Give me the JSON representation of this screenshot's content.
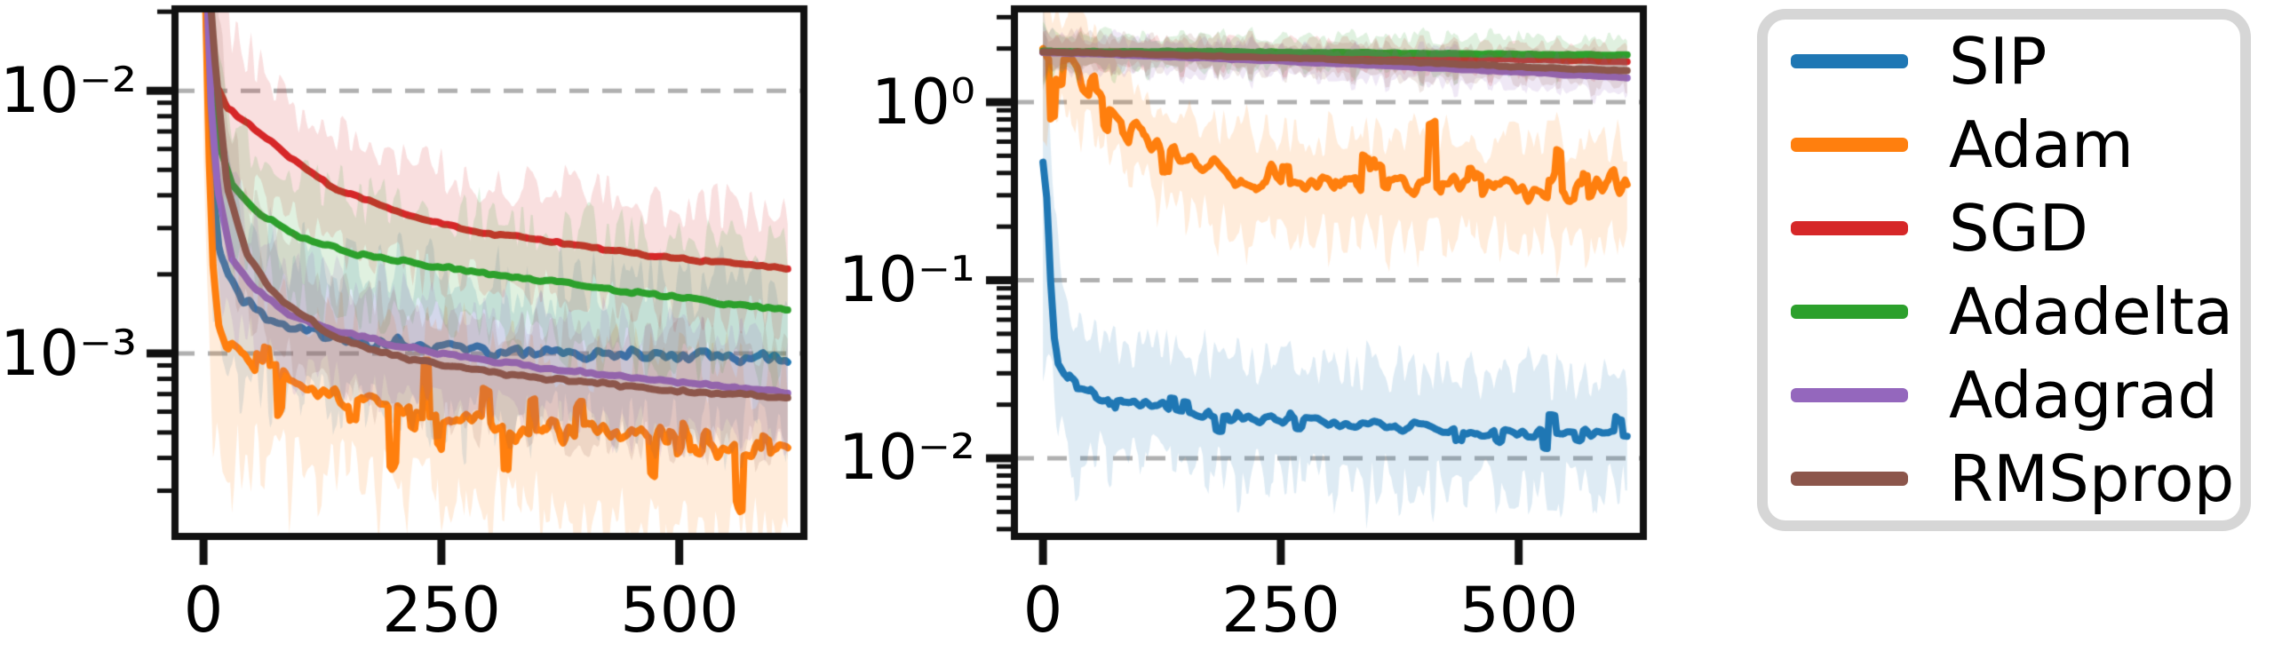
{
  "figure": {
    "background": "#ffffff",
    "spine_color": "#111111",
    "tick_color": "#111111",
    "grid_color": "#b0b0b0",
    "text_color": "#000000"
  },
  "legend": {
    "background": "#ffffff",
    "border_color": "#d6d6d6",
    "entries": [
      {
        "label": "SIP",
        "color": "#1f77b4"
      },
      {
        "label": "Adam",
        "color": "#ff7f0e"
      },
      {
        "label": "SGD",
        "color": "#d62728"
      },
      {
        "label": "Adadelta",
        "color": "#2ca02c"
      },
      {
        "label": "Adagrad",
        "color": "#9467bd"
      },
      {
        "label": "RMSprop",
        "color": "#8c564b"
      }
    ]
  },
  "chart_data": [
    {
      "type": "line",
      "title": "",
      "xlabel": "",
      "ylabel": "",
      "y_scale": "log",
      "grid": true,
      "legend_position": "outside-right",
      "xlim": [
        -30,
        631
      ],
      "ylim": [
        0.000201,
        0.0205
      ],
      "x_ticks": [
        0,
        250,
        500
      ],
      "x_tick_labels": [
        "0",
        "250",
        "500"
      ],
      "y_ticks": [
        0.01,
        0.001
      ],
      "y_tick_labels": [
        "10⁻²",
        "10⁻³"
      ],
      "series": [
        {
          "name": "SIP",
          "color": "#1f77b4",
          "seed": 7,
          "noise": 0.034,
          "spike": 0,
          "band": 0.26,
          "boost": 0.8,
          "decay": 28,
          "comb": [
            34,
            5,
            0.1
          ],
          "x": [
            0,
            3,
            6,
            10,
            16,
            25,
            40,
            60,
            90,
            130,
            180,
            240,
            310,
            390,
            470,
            550,
            615
          ],
          "y": [
            0.05,
            0.02,
            0.008,
            0.0042,
            0.0026,
            0.00195,
            0.0016,
            0.0014,
            0.00126,
            0.00117,
            0.00111,
            0.00106,
            0.00102,
            0.00099,
            0.00098,
            0.00097,
            0.00093
          ]
        },
        {
          "name": "Adam",
          "color": "#ff7f0e",
          "seed": 13,
          "noise": 0.055,
          "spike": 0.25,
          "band": 0.3,
          "boost": 1.0,
          "decay": 28,
          "comb": [
            30,
            5,
            0.12
          ],
          "x": [
            0,
            3,
            6,
            10,
            16,
            25,
            40,
            60,
            90,
            130,
            180,
            240,
            310,
            390,
            470,
            550,
            615
          ],
          "y": [
            0.05,
            0.015,
            0.005,
            0.0022,
            0.00135,
            0.00105,
            0.00092,
            0.00085,
            0.00077,
            0.0007,
            0.00064,
            0.00059,
            0.00054,
            0.0005,
            0.00047,
            0.00044,
            0.00042
          ]
        },
        {
          "name": "SGD",
          "color": "#d62728",
          "seed": 21,
          "noise": 0.007,
          "spike": 0,
          "band": 0.2,
          "boost": 1.2,
          "decay": 28,
          "comb": null,
          "x": [
            0,
            5,
            10,
            25,
            45,
            90,
            140,
            210,
            290,
            390,
            490,
            570,
            615
          ],
          "y": [
            0.05,
            0.025,
            0.011,
            0.0086,
            0.0076,
            0.0056,
            0.0042,
            0.0034,
            0.0029,
            0.0026,
            0.0023,
            0.0022,
            0.0021
          ]
        },
        {
          "name": "Adadelta",
          "color": "#2ca02c",
          "seed": 29,
          "noise": 0.009,
          "spike": 0,
          "band": 0.22,
          "boost": 1.0,
          "decay": 28,
          "comb": null,
          "x": [
            0,
            4,
            8,
            15,
            30,
            60,
            100,
            160,
            240,
            330,
            430,
            530,
            615
          ],
          "y": [
            0.05,
            0.025,
            0.012,
            0.0065,
            0.0044,
            0.0034,
            0.0028,
            0.0024,
            0.00215,
            0.00195,
            0.00175,
            0.00158,
            0.00145
          ]
        },
        {
          "name": "Adagrad",
          "color": "#9467bd",
          "seed": 37,
          "noise": 0.008,
          "spike": 0,
          "band": 0.2,
          "boost": 0.8,
          "decay": 28,
          "comb": null,
          "x": [
            0,
            4,
            8,
            15,
            30,
            55,
            90,
            140,
            200,
            270,
            350,
            430,
            510,
            580,
            615
          ],
          "y": [
            0.05,
            0.022,
            0.009,
            0.0042,
            0.0023,
            0.00175,
            0.0014,
            0.00122,
            0.00108,
            0.00097,
            0.00089,
            0.00082,
            0.00077,
            0.00073,
            0.00071
          ]
        },
        {
          "name": "RMSprop",
          "color": "#8c564b",
          "seed": 43,
          "noise": 0.01,
          "spike": 0,
          "band": 0.2,
          "boost": 0.8,
          "decay": 28,
          "comb": null,
          "x": [
            0,
            5,
            12,
            25,
            45,
            70,
            100,
            140,
            190,
            250,
            320,
            400,
            480,
            560,
            615
          ],
          "y": [
            0.05,
            0.028,
            0.013,
            0.0042,
            0.0024,
            0.00175,
            0.00142,
            0.00115,
            0.001,
            0.0009,
            0.00083,
            0.00078,
            0.00073,
            0.0007,
            0.00068
          ]
        }
      ]
    },
    {
      "type": "line",
      "title": "",
      "xlabel": "",
      "ylabel": "",
      "y_scale": "log",
      "grid": true,
      "legend_position": "outside-right",
      "xlim": [
        -30,
        631
      ],
      "ylim": [
        0.00364,
        3.34
      ],
      "x_ticks": [
        0,
        250,
        500
      ],
      "x_tick_labels": [
        "0",
        "250",
        "500"
      ],
      "y_ticks": [
        1,
        0.1,
        0.01
      ],
      "y_tick_labels": [
        "10⁰",
        "10⁻¹",
        "10⁻²"
      ],
      "series": [
        {
          "name": "SIP",
          "color": "#1f77b4",
          "seed": 51,
          "noise": 0.045,
          "spike": 0.12,
          "band": 0.3,
          "boost": 1.6,
          "decay": 18,
          "comb": [
            34,
            5,
            0.14
          ],
          "x": [
            0,
            4,
            8,
            12,
            16,
            22,
            30,
            45,
            65,
            90,
            120,
            160,
            200,
            250,
            300,
            360,
            420,
            480,
            540,
            615
          ],
          "y": [
            0.46,
            0.28,
            0.1,
            0.048,
            0.034,
            0.03,
            0.027,
            0.0245,
            0.0225,
            0.021,
            0.0195,
            0.0183,
            0.0172,
            0.0165,
            0.016,
            0.0152,
            0.015,
            0.0143,
            0.0139,
            0.0135
          ]
        },
        {
          "name": "Adam",
          "color": "#ff7f0e",
          "seed": 57,
          "noise": 0.1,
          "spike": 0.45,
          "band": 0.26,
          "boost": 0.5,
          "decay": 28,
          "comb": [
            30,
            5,
            0.12
          ],
          "x": [
            0,
            15,
            30,
            50,
            70,
            90,
            110,
            130,
            150,
            175,
            200,
            250,
            300,
            360,
            420,
            480,
            540,
            615
          ],
          "y": [
            1.9,
            1.78,
            1.55,
            1.25,
            0.98,
            0.78,
            0.63,
            0.53,
            0.46,
            0.41,
            0.38,
            0.355,
            0.345,
            0.335,
            0.33,
            0.325,
            0.33,
            0.33
          ]
        },
        {
          "name": "SGD",
          "color": "#d62728",
          "seed": 63,
          "noise": 0.004,
          "spike": 0,
          "band": 0.075,
          "boost": 0.3,
          "decay": 28,
          "comb": [
            36,
            6,
            0.05
          ],
          "x": [
            0,
            100,
            200,
            300,
            400,
            500,
            615
          ],
          "y": [
            1.92,
            1.9,
            1.87,
            1.83,
            1.79,
            1.74,
            1.69
          ]
        },
        {
          "name": "Adadelta",
          "color": "#2ca02c",
          "seed": 69,
          "noise": 0.004,
          "spike": 0,
          "band": 0.09,
          "boost": 0.3,
          "decay": 28,
          "comb": [
            36,
            6,
            0.05
          ],
          "x": [
            0,
            150,
            300,
            450,
            615
          ],
          "y": [
            1.93,
            1.92,
            1.9,
            1.87,
            1.84
          ]
        },
        {
          "name": "Adagrad",
          "color": "#9467bd",
          "seed": 75,
          "noise": 0.004,
          "spike": 0,
          "band": 0.085,
          "boost": 0.3,
          "decay": 28,
          "comb": [
            36,
            6,
            0.05
          ],
          "x": [
            0,
            80,
            160,
            250,
            340,
            430,
            520,
            615
          ],
          "y": [
            1.9,
            1.85,
            1.78,
            1.7,
            1.62,
            1.54,
            1.46,
            1.37
          ]
        },
        {
          "name": "RMSprop",
          "color": "#8c564b",
          "seed": 81,
          "noise": 0.005,
          "spike": 0,
          "band": 0.085,
          "boost": 0.3,
          "decay": 28,
          "comb": [
            36,
            6,
            0.05
          ],
          "x": [
            0,
            80,
            160,
            250,
            340,
            430,
            520,
            615
          ],
          "y": [
            1.91,
            1.88,
            1.83,
            1.77,
            1.71,
            1.64,
            1.57,
            1.5
          ]
        }
      ]
    }
  ]
}
